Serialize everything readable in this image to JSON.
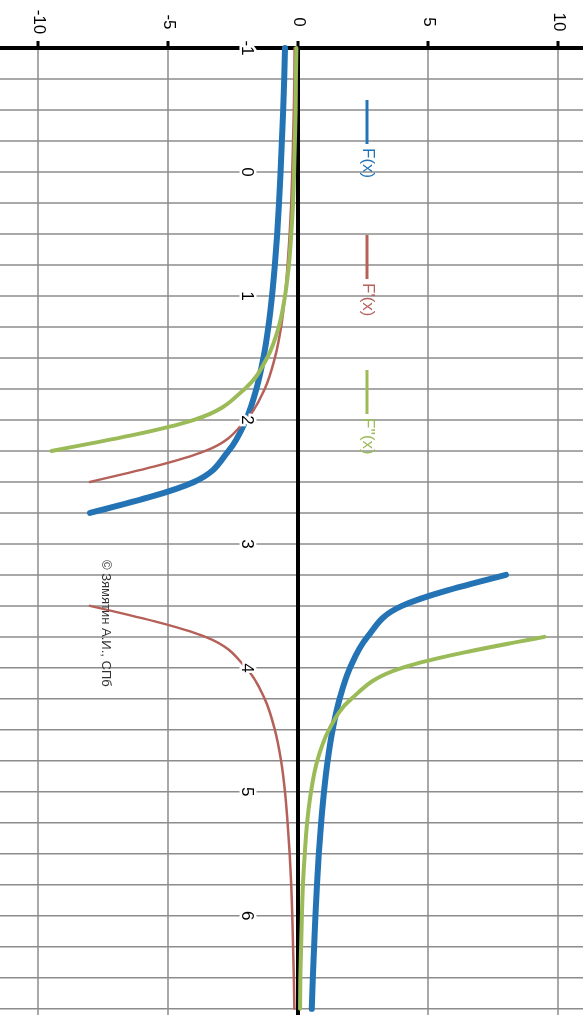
{
  "chart_data": {
    "type": "line",
    "series": [
      {
        "name": "F(x)",
        "color": "#2474b5",
        "x": [
          -0.5,
          -0.53,
          -0.57,
          -0.62,
          -0.67,
          -0.73,
          -0.8,
          -0.89,
          -1,
          -1.14,
          -1.33,
          -1.6,
          -2,
          -2.67,
          -4,
          -8
        ],
        "values": [
          -1,
          -0.75,
          -0.5,
          -0.25,
          0,
          0.25,
          0.5,
          0.75,
          1,
          1.25,
          1.5,
          1.75,
          2,
          2.25,
          2.5,
          2.75
        ]
      },
      {
        "color": "#2474b5",
        "x": [
          8,
          4,
          2.67,
          2,
          1.6,
          1.33,
          1.14,
          1,
          0.89,
          0.8,
          0.73,
          0.67,
          0.62,
          0.57,
          0.53
        ],
        "values": [
          3.25,
          3.5,
          3.75,
          4,
          4.25,
          4.5,
          4.75,
          5,
          5.25,
          5.5,
          5.75,
          6,
          6.25,
          6.5,
          6.75
        ]
      },
      {
        "name": "F'(x)",
        "color": "#b5615a",
        "x": [
          -0.13,
          -0.14,
          -0.16,
          -0.19,
          -0.22,
          -0.26,
          -0.32,
          -0.4,
          -0.5,
          -0.65,
          -0.89,
          -1.28,
          -2,
          -3.56,
          -8
        ],
        "values": [
          -1,
          -0.75,
          -0.5,
          -0.25,
          0,
          0.25,
          0.5,
          0.75,
          1,
          1.25,
          1.5,
          1.75,
          2,
          2.25,
          2.5
        ]
      },
      {
        "color": "#b5615a",
        "x": [
          -8,
          -3.56,
          -2,
          -1.28,
          -0.89,
          -0.65,
          -0.5,
          -0.4,
          -0.32,
          -0.26,
          -0.22,
          -0.19,
          -0.16,
          -0.14
        ],
        "values": [
          3.5,
          3.75,
          4,
          4.25,
          4.5,
          4.75,
          5,
          5.25,
          5.5,
          5.75,
          6,
          6.25,
          6.5,
          6.75
        ]
      },
      {
        "name": "F''(x)",
        "color": "#9bbb59",
        "x": [
          -0.06,
          -0.08,
          -0.09,
          -0.12,
          -0.15,
          -0.19,
          -0.26,
          -0.35,
          -0.5,
          -0.74,
          -1.19,
          -2.05,
          -4,
          -9.48
        ],
        "values": [
          -1,
          -0.75,
          -0.5,
          -0.25,
          0,
          0.25,
          0.5,
          0.75,
          1,
          1.25,
          1.5,
          1.75,
          2,
          2.25
        ]
      },
      {
        "color": "#9bbb59",
        "x": [
          9.48,
          4,
          2.05,
          1.19,
          0.74,
          0.5,
          0.35,
          0.26,
          0.19,
          0.15,
          0.12,
          0.09,
          0.08
        ],
        "values": [
          3.75,
          4,
          4.25,
          4.5,
          4.75,
          5,
          5.25,
          5.5,
          5.75,
          6,
          6.25,
          6.5,
          6.75
        ]
      }
    ],
    "xlim": [
      -10,
      10
    ],
    "xticks": [
      -10,
      -5,
      0,
      5,
      10
    ],
    "ylim": [
      6.8,
      -1
    ],
    "yticks": [
      -1,
      {
        "value": -0.75,
        "label": null
      },
      {
        "value": -0.5,
        "label": null
      },
      {
        "value": -0.25,
        "label": null
      },
      0,
      {
        "value": 0.25,
        "label": null
      },
      {
        "value": 0.5,
        "label": null
      },
      {
        "value": 0.75,
        "label": null
      },
      1,
      {
        "value": 1.25,
        "label": null
      },
      {
        "value": 1.5,
        "label": null
      },
      {
        "value": 1.75,
        "label": null
      },
      2,
      {
        "value": 2.25,
        "label": null
      },
      {
        "value": 2.5,
        "label": null
      },
      {
        "value": 2.75,
        "label": null
      },
      3,
      {
        "value": 3.25,
        "label": null
      },
      {
        "value": 3.5,
        "label": null
      },
      {
        "value": 3.75,
        "label": null
      },
      4,
      {
        "value": 4.25,
        "label": null
      },
      {
        "value": 4.5,
        "label": null
      },
      {
        "value": 4.75,
        "label": null
      },
      5,
      {
        "value": 5.25,
        "label": null
      },
      {
        "value": 5.5,
        "label": null
      },
      {
        "value": 5.75,
        "label": null
      },
      6,
      {
        "value": 6.25,
        "label": null
      },
      {
        "value": 6.5,
        "label": null
      },
      {
        "value": 6.75,
        "label": null
      }
    ],
    "grid": true,
    "legend": "top",
    "annotations": [
      "© Зямятин А.И., СПб"
    ]
  }
}
